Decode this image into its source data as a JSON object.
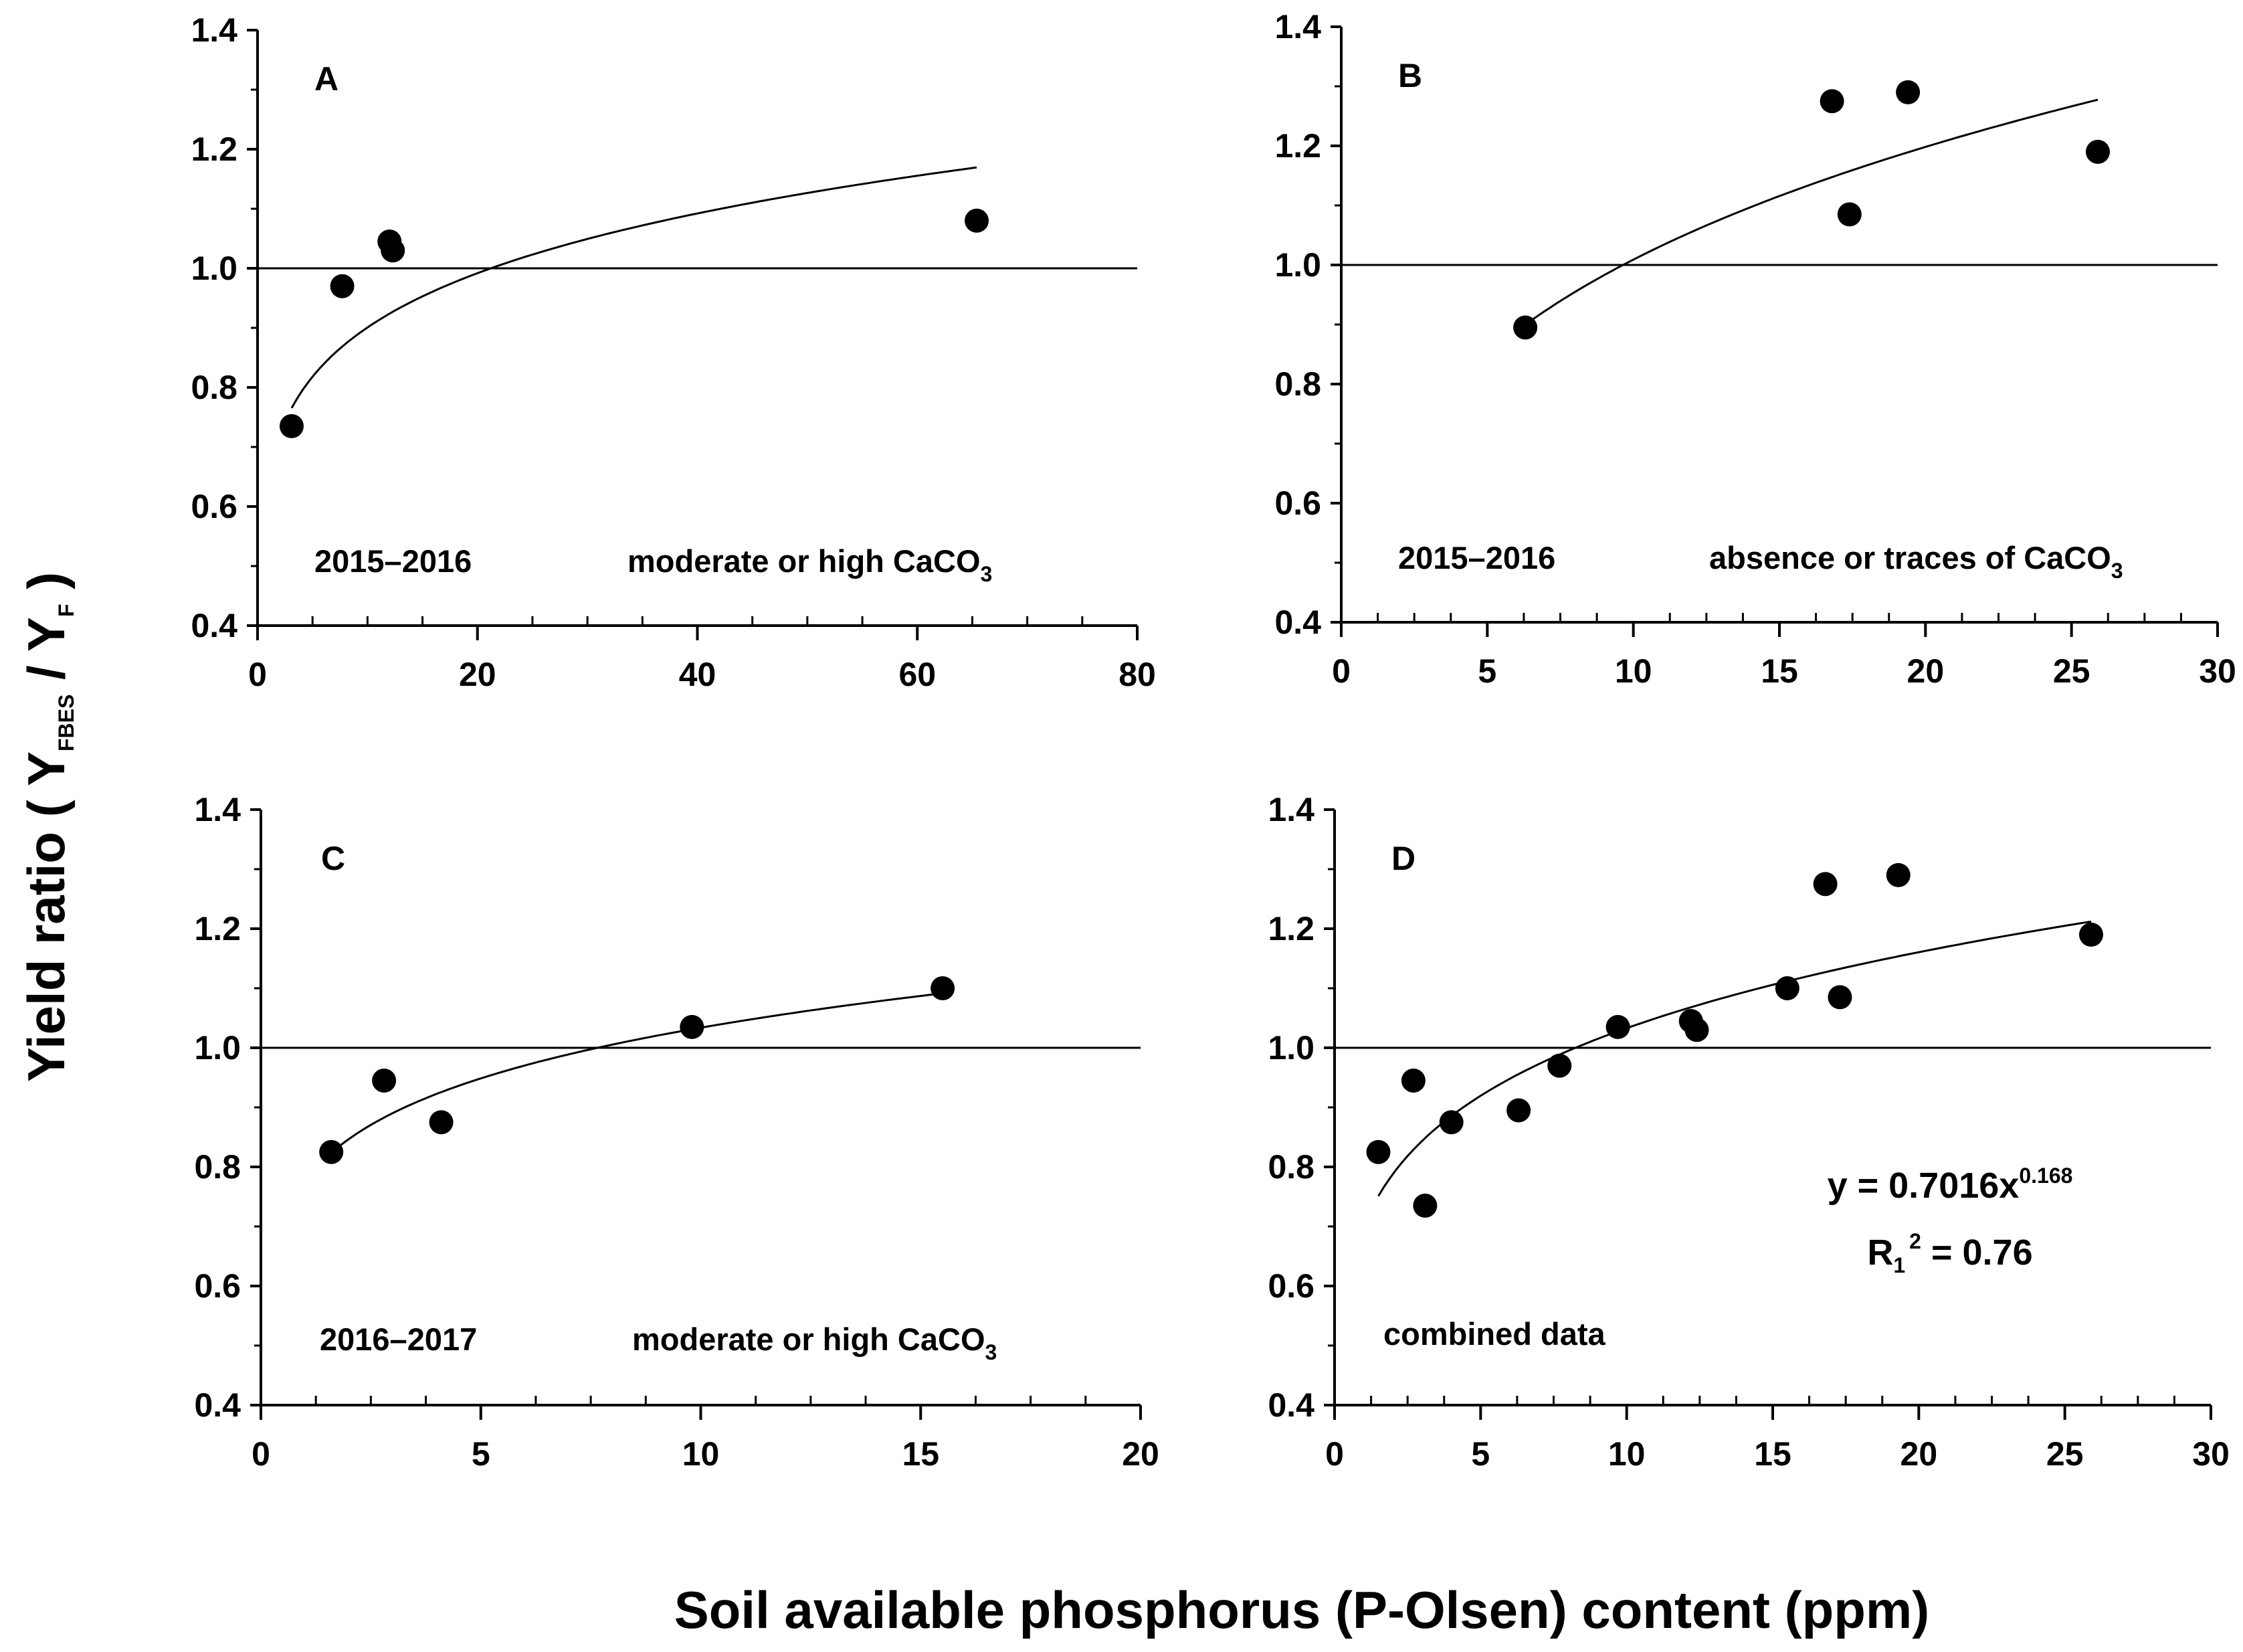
{
  "figure": {
    "y_axis_title": {
      "prefix": "Yield ratio ( Y",
      "sub1": "FBES",
      "mid": " / Y",
      "sub2": "F",
      "suffix": " )"
    },
    "x_axis_title": "Soil available phosphorus (P-Olsen) content   (ppm)"
  },
  "chart_data": [
    {
      "type": "scatter",
      "panel": "A",
      "period": "2015–2016",
      "condition": {
        "text": "moderate or high CaCO",
        "sub": "3"
      },
      "xlim": [
        0,
        80
      ],
      "ylim": [
        0.4,
        1.4
      ],
      "xticks": [
        0,
        20,
        40,
        60,
        80
      ],
      "yticks": [
        0.4,
        0.6,
        0.8,
        1.0,
        1.2,
        1.4
      ],
      "ytick_labels": [
        "0.4",
        "0.6",
        "0.8",
        "1.0",
        "1.2",
        "1.4"
      ],
      "reference_line_y": 1.0,
      "points": {
        "x": [
          3.1,
          7.7,
          12.0,
          12.3,
          65.4
        ],
        "y": [
          0.735,
          0.97,
          1.045,
          1.03,
          1.08
        ]
      },
      "fit": {
        "type": "power",
        "a": 0.654,
        "b": 0.139,
        "x_range": [
          3.1,
          65.4
        ]
      }
    },
    {
      "type": "scatter",
      "panel": "B",
      "period": "2015–2016",
      "condition": {
        "text": "absence or traces of CaCO",
        "sub": "3"
      },
      "xlim": [
        0,
        30
      ],
      "ylim": [
        0.4,
        1.4
      ],
      "xticks": [
        0,
        5,
        10,
        15,
        20,
        25,
        30
      ],
      "yticks": [
        0.4,
        0.6,
        0.8,
        1.0,
        1.2,
        1.4
      ],
      "ytick_labels": [
        "0.4",
        "0.6",
        "0.8",
        "1.0",
        "1.2",
        "1.4"
      ],
      "reference_line_y": 1.0,
      "points": {
        "x": [
          6.3,
          16.8,
          17.4,
          19.4,
          25.9
        ],
        "y": [
          0.895,
          1.275,
          1.085,
          1.29,
          1.19
        ]
      },
      "fit": {
        "type": "power",
        "a": 0.57,
        "b": 0.248,
        "x_range": [
          6.3,
          25.9
        ]
      }
    },
    {
      "type": "scatter",
      "panel": "C",
      "period": "2016–2017",
      "condition": {
        "text": "moderate or high CaCO",
        "sub": "3"
      },
      "xlim": [
        0,
        20
      ],
      "ylim": [
        0.4,
        1.4
      ],
      "xticks": [
        0,
        5,
        10,
        15,
        20
      ],
      "yticks": [
        0.4,
        0.6,
        0.8,
        1.0,
        1.2,
        1.4
      ],
      "ytick_labels": [
        "0.4",
        "0.6",
        "0.8",
        "1.0",
        "1.2",
        "1.4"
      ],
      "reference_line_y": 1.0,
      "points": {
        "x": [
          1.6,
          2.8,
          4.1,
          9.8,
          15.5
        ],
        "y": [
          0.825,
          0.945,
          0.875,
          1.035,
          1.1
        ]
      },
      "fit": {
        "type": "power",
        "a": 0.777,
        "b": 0.124,
        "x_range": [
          1.6,
          15.5
        ]
      }
    },
    {
      "type": "scatter",
      "panel": "D",
      "period": "combined data",
      "equation": {
        "prefix": "y = 0.7016x",
        "exp": "0.168"
      },
      "r2": {
        "lead": "R",
        "sub": "1",
        "sup": "2",
        "tail": " = 0.76"
      },
      "xlim": [
        0,
        30
      ],
      "ylim": [
        0.4,
        1.4
      ],
      "xticks": [
        0,
        5,
        10,
        15,
        20,
        25,
        30
      ],
      "yticks": [
        0.4,
        0.6,
        0.8,
        1.0,
        1.2,
        1.4
      ],
      "ytick_labels": [
        "0.4",
        "0.6",
        "0.8",
        "1.0",
        "1.2",
        "1.4"
      ],
      "reference_line_y": 1.0,
      "points": {
        "x": [
          1.5,
          2.7,
          3.1,
          4.0,
          6.3,
          7.7,
          9.7,
          12.2,
          12.4,
          15.5,
          16.8,
          17.3,
          19.3,
          25.9
        ],
        "y": [
          0.825,
          0.945,
          0.735,
          0.875,
          0.895,
          0.97,
          1.035,
          1.045,
          1.03,
          1.1,
          1.275,
          1.085,
          1.29,
          1.19
        ]
      },
      "fit": {
        "type": "power",
        "a": 0.7016,
        "b": 0.168,
        "x_range": [
          1.5,
          25.9
        ]
      }
    }
  ]
}
